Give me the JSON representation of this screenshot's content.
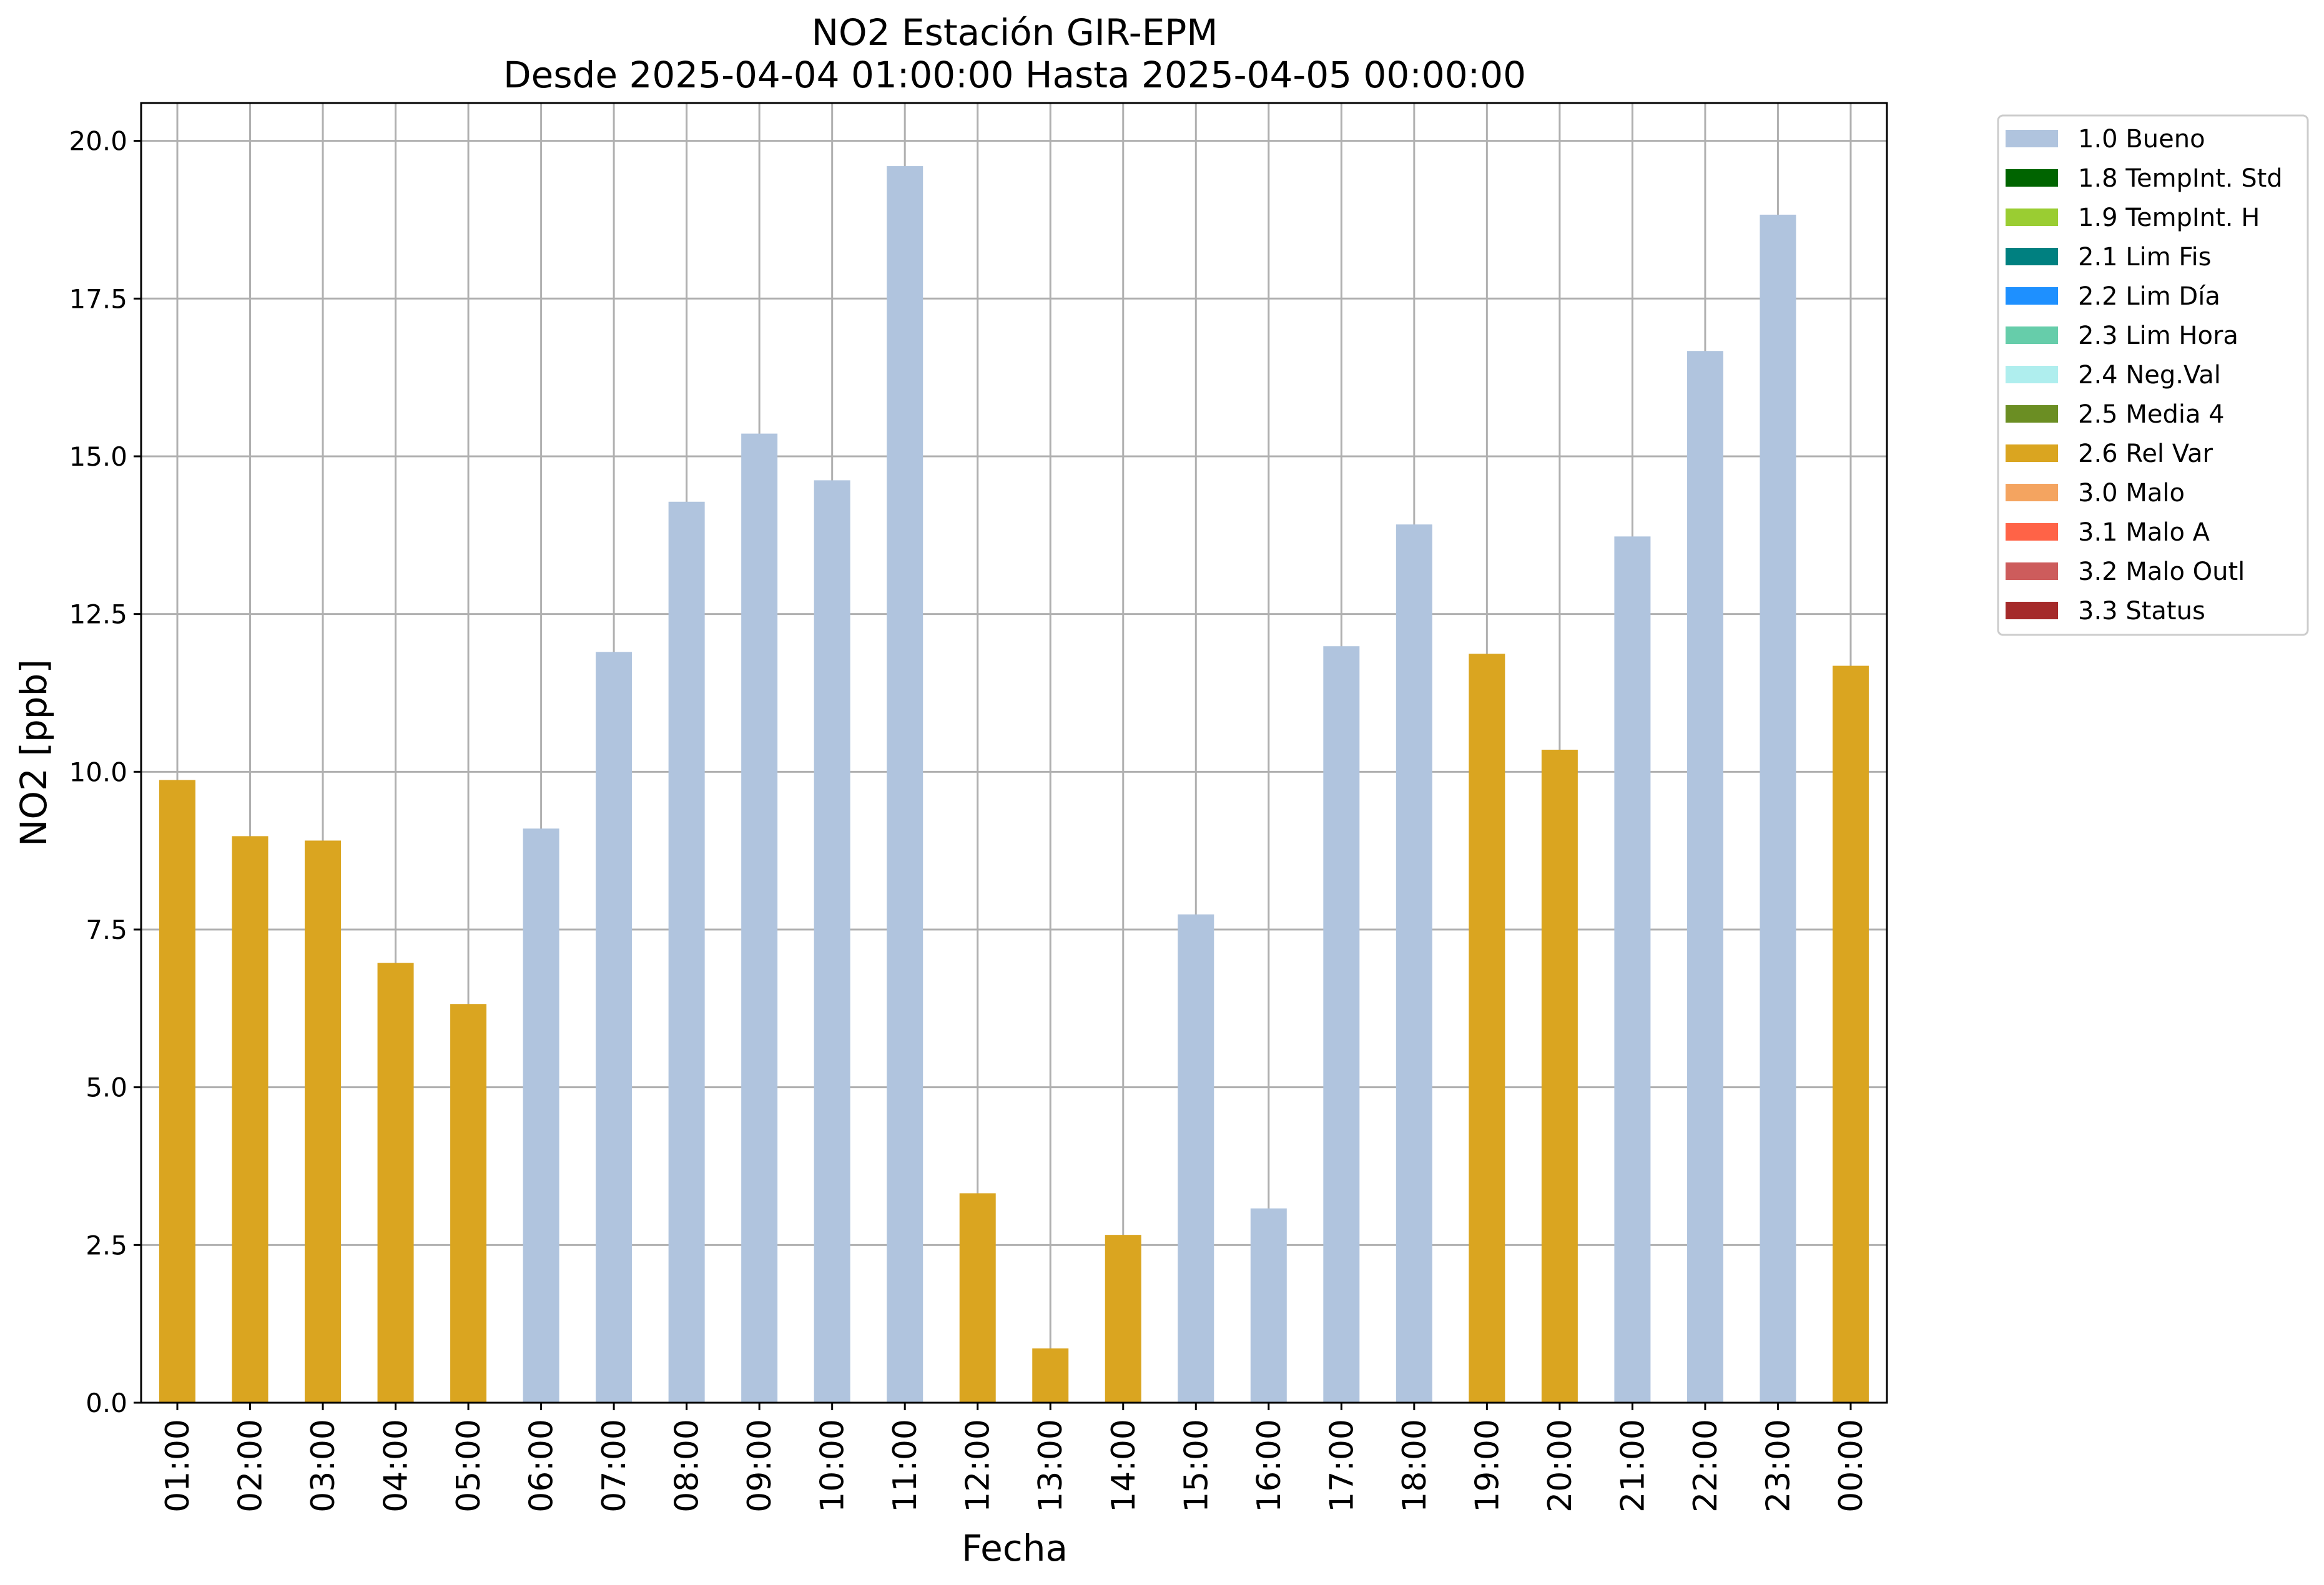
{
  "chart_data": {
    "type": "bar",
    "title": "NO2 Estación GIR-EPM",
    "subtitle": "Desde 2025-04-04 01:00:00 Hasta 2025-04-05 00:00:00",
    "xlabel": "Fecha",
    "ylabel": "NO2 [ppb]",
    "ylim": [
      0,
      20.6
    ],
    "yticks": [
      0,
      2.5,
      5,
      7.5,
      10,
      12.5,
      15,
      17.5,
      20
    ],
    "ytick_labels": [
      "0.0",
      "2.5",
      "5.0",
      "7.5",
      "10.0",
      "12.5",
      "15.0",
      "17.5",
      "20.0"
    ],
    "grid": true,
    "legend_position": "outside-right-top",
    "categories": [
      "01:00",
      "02:00",
      "03:00",
      "04:00",
      "05:00",
      "06:00",
      "07:00",
      "08:00",
      "09:00",
      "10:00",
      "11:00",
      "12:00",
      "13:00",
      "14:00",
      "15:00",
      "16:00",
      "17:00",
      "18:00",
      "19:00",
      "20:00",
      "21:00",
      "22:00",
      "23:00",
      "00:00"
    ],
    "values": [
      9.87,
      8.98,
      8.91,
      6.97,
      6.32,
      9.1,
      11.9,
      14.28,
      15.36,
      14.62,
      19.6,
      3.32,
      0.86,
      2.66,
      7.74,
      3.08,
      11.99,
      13.92,
      11.87,
      10.35,
      13.73,
      16.67,
      18.83,
      11.68
    ],
    "flags": [
      "2.6 Rel Var",
      "2.6 Rel Var",
      "2.6 Rel Var",
      "2.6 Rel Var",
      "2.6 Rel Var",
      "1.0 Bueno",
      "1.0 Bueno",
      "1.0 Bueno",
      "1.0 Bueno",
      "1.0 Bueno",
      "1.0 Bueno",
      "2.6 Rel Var",
      "2.6 Rel Var",
      "2.6 Rel Var",
      "1.0 Bueno",
      "1.0 Bueno",
      "1.0 Bueno",
      "1.0 Bueno",
      "2.6 Rel Var",
      "2.6 Rel Var",
      "1.0 Bueno",
      "1.0 Bueno",
      "1.0 Bueno",
      "2.6 Rel Var"
    ],
    "legend": [
      {
        "label": "1.0 Bueno",
        "color": "#b0c4de"
      },
      {
        "label": "1.8 TempInt. Std",
        "color": "#006400"
      },
      {
        "label": "1.9 TempInt. H",
        "color": "#9acd32"
      },
      {
        "label": "2.1 Lim Fis",
        "color": "#008080"
      },
      {
        "label": "2.2 Lim Día",
        "color": "#1e90ff"
      },
      {
        "label": "2.3 Lim Hora",
        "color": "#66cdaa"
      },
      {
        "label": "2.4 Neg.Val",
        "color": "#afeeee"
      },
      {
        "label": "2.5 Media 4",
        "color": "#6b8e23"
      },
      {
        "label": "2.6 Rel Var",
        "color": "#daa520"
      },
      {
        "label": "3.0 Malo",
        "color": "#f4a460"
      },
      {
        "label": "3.1 Malo A",
        "color": "#ff6347"
      },
      {
        "label": "3.2 Malo Outl",
        "color": "#cd5c5c"
      },
      {
        "label": "3.3 Status",
        "color": "#a52a2a"
      }
    ]
  }
}
